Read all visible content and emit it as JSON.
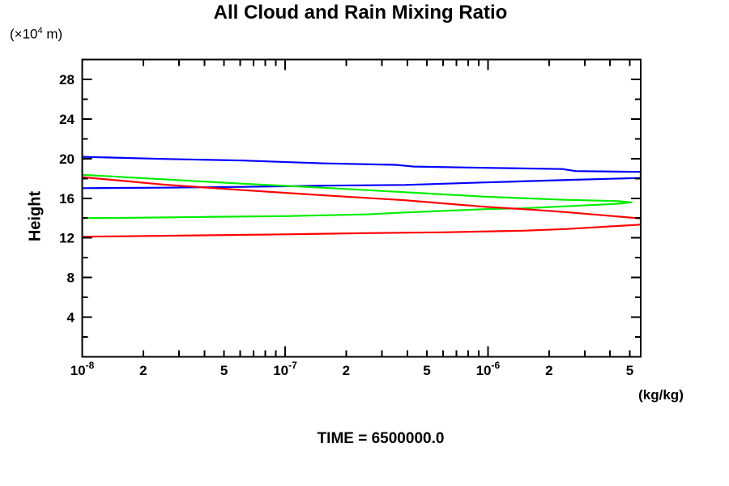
{
  "header": {
    "title": "All Cloud and Rain Mixing Ratio"
  },
  "footer": {
    "time_label": "TIME = 6500000.0"
  },
  "axes": {
    "y_unit": {
      "prefix": "(×10",
      "sup": "4",
      "suffix": " m)"
    },
    "y_axis_title": "Height",
    "x_unit_label": "(kg/kg)"
  },
  "chart_data": {
    "type": "line",
    "title": "All Cloud and Rain Mixing Ratio",
    "xlabel": "(kg/kg)",
    "ylabel": "Height (×10^4 m)",
    "x_scale": "log",
    "grid": false,
    "legend": "none",
    "xlim": [
      1e-08,
      5.66e-06
    ],
    "ylim": [
      0,
      30
    ],
    "x_tick_labels": [
      {
        "v": 1e-08,
        "text": "10",
        "sup": "-8"
      },
      {
        "v": 2e-08,
        "text": "2"
      },
      {
        "v": 5e-08,
        "text": "5"
      },
      {
        "v": 1e-07,
        "text": "10",
        "sup": "-7"
      },
      {
        "v": 2e-07,
        "text": "2"
      },
      {
        "v": 5e-07,
        "text": "5"
      },
      {
        "v": 1e-06,
        "text": "10",
        "sup": "-6"
      },
      {
        "v": 2e-06,
        "text": "2"
      },
      {
        "v": 5e-06,
        "text": "5"
      }
    ],
    "x_major_ticks": [
      1e-08,
      1e-07,
      1e-06
    ],
    "x_minor_ticks": [
      2e-08,
      3e-08,
      4e-08,
      5e-08,
      6e-08,
      7e-08,
      8e-08,
      9e-08,
      2e-07,
      3e-07,
      4e-07,
      5e-07,
      6e-07,
      7e-07,
      8e-07,
      9e-07,
      2e-06,
      3e-06,
      4e-06,
      5e-06
    ],
    "y_major_ticks": [
      {
        "v": 4,
        "text": "4"
      },
      {
        "v": 8,
        "text": "8"
      },
      {
        "v": 12,
        "text": "12"
      },
      {
        "v": 16,
        "text": "16"
      },
      {
        "v": 20,
        "text": "20"
      },
      {
        "v": 24,
        "text": "24"
      },
      {
        "v": 28,
        "text": "28"
      }
    ],
    "y_minor_ticks": [
      2,
      6,
      10,
      14,
      18,
      22,
      26,
      30
    ],
    "series": [
      {
        "name": "blue-profile",
        "color": "#0000ff",
        "points": [
          [
            1e-08,
            20.18
          ],
          [
            2.5e-08,
            19.97
          ],
          [
            6.2e-08,
            19.81
          ],
          [
            1.56e-07,
            19.52
          ],
          [
            3.5e-07,
            19.37
          ],
          [
            4.3e-07,
            19.2
          ],
          [
            9.7e-07,
            19.07
          ],
          [
            2.33e-06,
            18.95
          ],
          [
            2.7e-06,
            18.74
          ],
          [
            5.66e-06,
            18.66
          ],
          [
            5.66e-06,
            18.05
          ],
          [
            2.5e-06,
            17.85
          ],
          [
            9.7e-07,
            17.6
          ],
          [
            3.9e-07,
            17.35
          ],
          [
            1.56e-07,
            17.27
          ],
          [
            6.2e-08,
            17.15
          ],
          [
            2.5e-08,
            17.07
          ],
          [
            1e-08,
            17.02
          ]
        ]
      },
      {
        "name": "green-profile",
        "color": "#00ee00",
        "points": [
          [
            1e-08,
            18.37
          ],
          [
            2.5e-08,
            17.92
          ],
          [
            6.2e-08,
            17.47
          ],
          [
            1.56e-07,
            17.06
          ],
          [
            3.9e-07,
            16.61
          ],
          [
            9.7e-07,
            16.16
          ],
          [
            2.4e-06,
            15.84
          ],
          [
            4.3e-06,
            15.72
          ],
          [
            5.1e-06,
            15.59
          ],
          [
            4.3e-06,
            15.43
          ],
          [
            2.4e-06,
            15.19
          ],
          [
            1.5e-06,
            14.98
          ],
          [
            9.7e-07,
            14.9
          ],
          [
            3.9e-07,
            14.57
          ],
          [
            2.5e-07,
            14.37
          ],
          [
            1e-07,
            14.2
          ],
          [
            4e-08,
            14.12
          ],
          [
            1.6e-08,
            14.02
          ],
          [
            1e-08,
            14.0
          ]
        ]
      },
      {
        "name": "red-profile",
        "color": "#ff0000",
        "points": [
          [
            1e-08,
            18.13
          ],
          [
            2.5e-08,
            17.39
          ],
          [
            6.2e-08,
            16.82
          ],
          [
            1.56e-07,
            16.29
          ],
          [
            3.9e-07,
            15.8
          ],
          [
            9.7e-07,
            15.14
          ],
          [
            1.75e-06,
            14.81
          ],
          [
            2.4e-06,
            14.61
          ],
          [
            5.66e-06,
            13.96
          ],
          [
            5.66e-06,
            13.34
          ],
          [
            2.4e-06,
            12.89
          ],
          [
            1.5e-06,
            12.73
          ],
          [
            6e-07,
            12.56
          ],
          [
            2.5e-07,
            12.48
          ],
          [
            1e-07,
            12.36
          ],
          [
            4e-08,
            12.26
          ],
          [
            1.6e-08,
            12.16
          ],
          [
            1e-08,
            12.12
          ]
        ]
      }
    ]
  }
}
